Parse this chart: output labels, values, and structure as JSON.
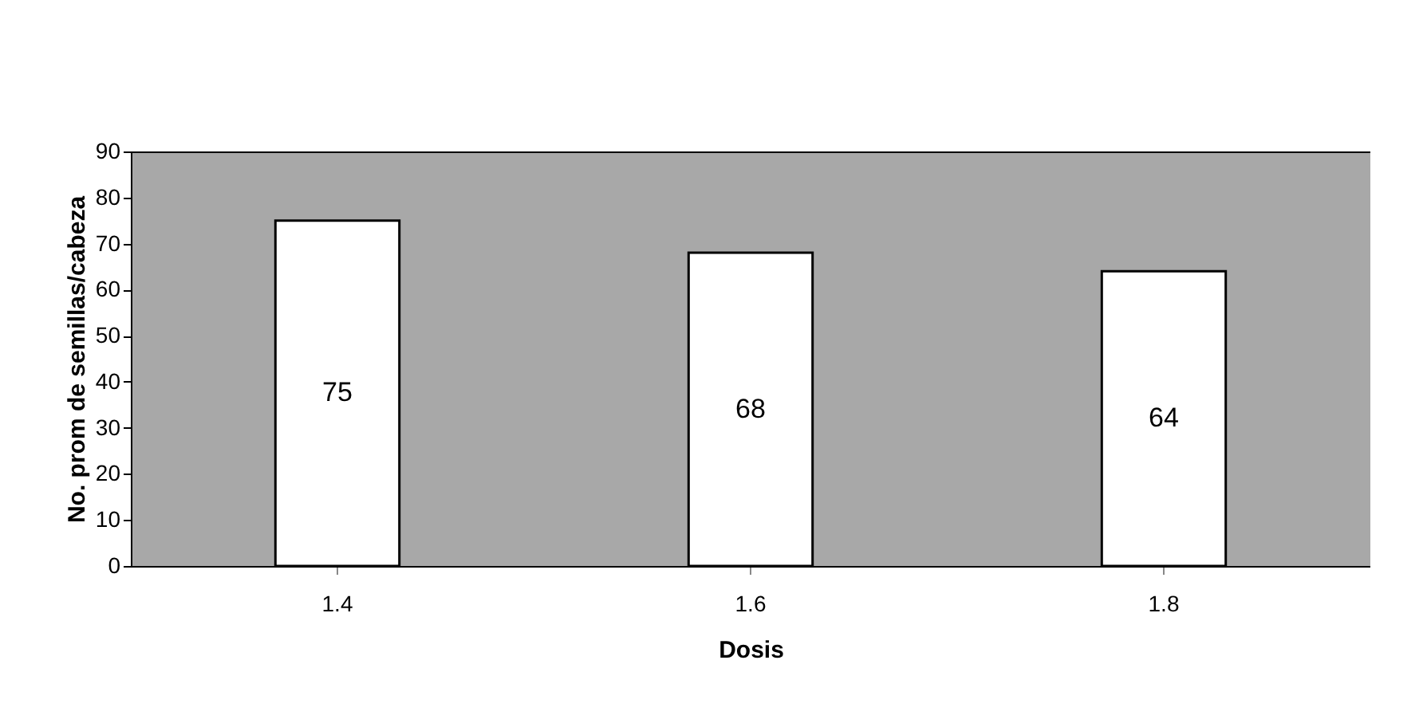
{
  "chart_data": {
    "type": "bar",
    "xlabel": "Dosis",
    "ylabel": "No. prom de semillas/cabeza",
    "categories": [
      "1.4",
      "1.6",
      "1.8"
    ],
    "values": [
      75,
      68,
      64
    ],
    "color": "#ffffff",
    "ylim": [
      0,
      90
    ],
    "yticks": [
      0,
      10,
      20,
      30,
      40,
      50,
      60,
      70,
      80,
      90
    ],
    "data_labels": true,
    "grid": false
  }
}
